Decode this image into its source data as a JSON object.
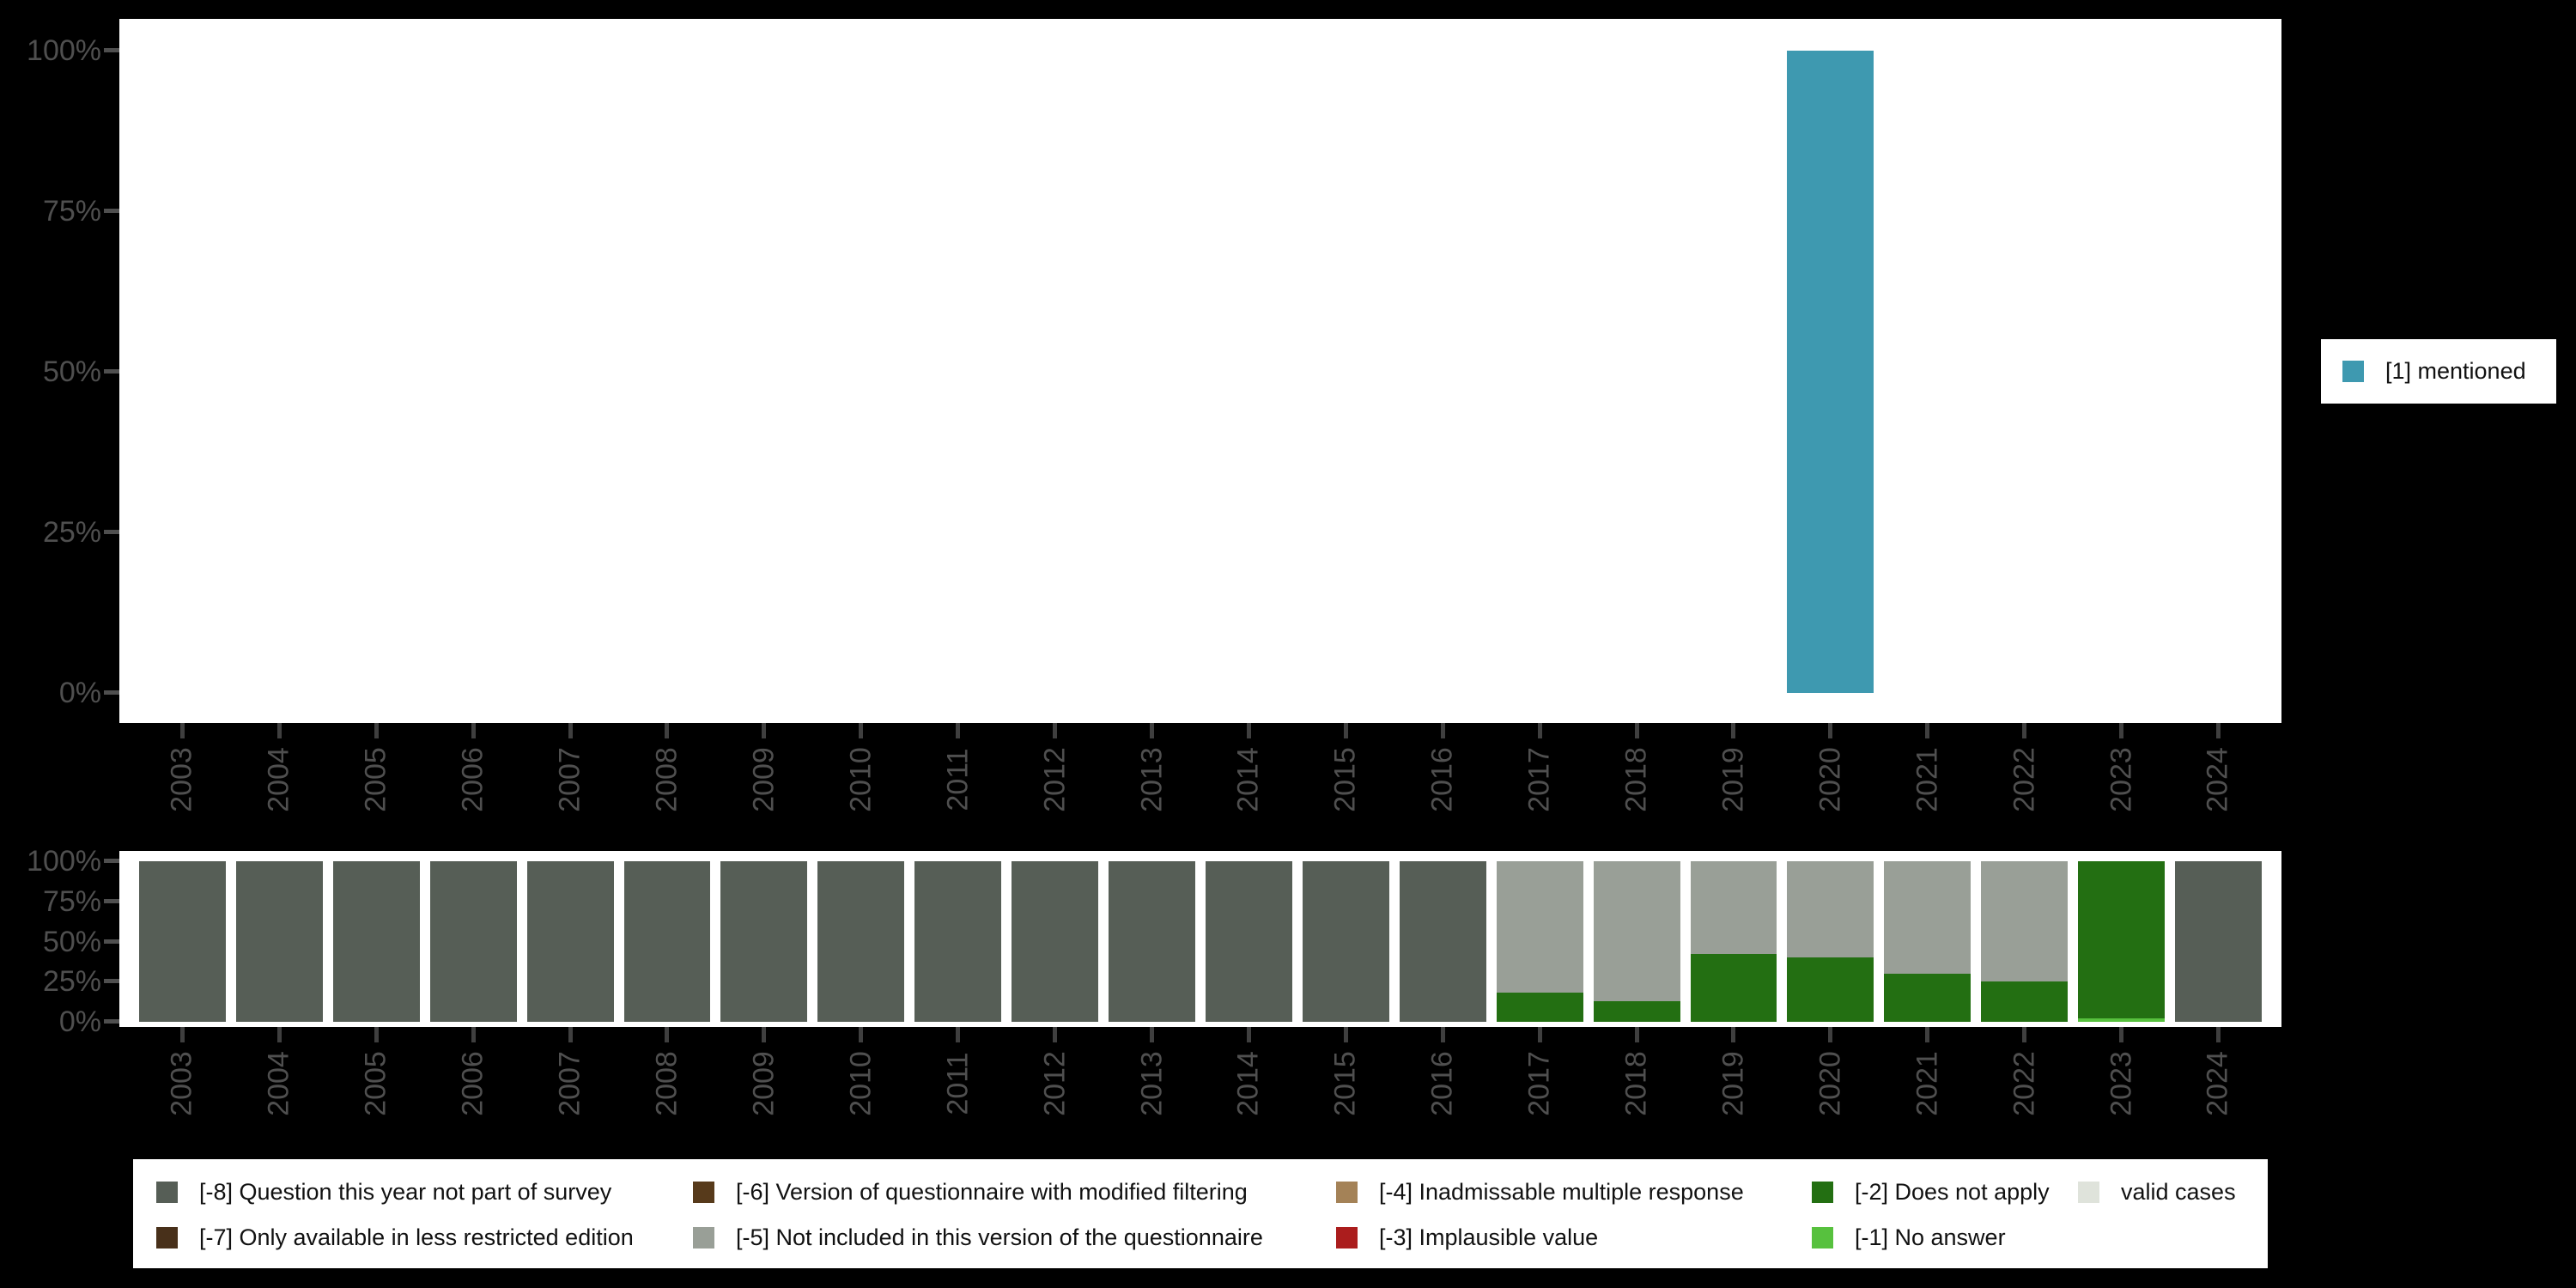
{
  "axes": {
    "y_tick_labels": [
      "0%",
      "25%",
      "50%",
      "75%",
      "100%"
    ],
    "x_tick_labels": [
      "2003",
      "2004",
      "2005",
      "2006",
      "2007",
      "2008",
      "2009",
      "2010",
      "2011",
      "2012",
      "2013",
      "2014",
      "2015",
      "2016",
      "2017",
      "2018",
      "2019",
      "2020",
      "2021",
      "2022",
      "2023",
      "2024"
    ]
  },
  "right_legend": {
    "items": [
      {
        "label": "[1] mentioned",
        "color": "#3e99b0"
      }
    ]
  },
  "bottom_legend": {
    "column_codes": [
      [
        "-8",
        "-7"
      ],
      [
        "-6",
        "-5"
      ],
      [
        "-4",
        "-3"
      ],
      [
        "-2",
        "-1"
      ],
      [
        "valid"
      ]
    ]
  },
  "chart_data": [
    {
      "type": "bar",
      "title": "",
      "categories": [
        "2003",
        "2004",
        "2005",
        "2006",
        "2007",
        "2008",
        "2009",
        "2010",
        "2011",
        "2012",
        "2013",
        "2014",
        "2015",
        "2016",
        "2017",
        "2018",
        "2019",
        "2020",
        "2021",
        "2022",
        "2023",
        "2024"
      ],
      "series": [
        {
          "code": "1",
          "name": "[1] mentioned",
          "color": "#3e99b0",
          "values": [
            0,
            0,
            0,
            0,
            0,
            0,
            0,
            0,
            0,
            0,
            0,
            0,
            0,
            0,
            0,
            0,
            0,
            100,
            0,
            0,
            0,
            0
          ]
        }
      ],
      "xlabel": "",
      "ylabel": "",
      "ylim": [
        0,
        100
      ],
      "yticks": [
        "0%",
        "25%",
        "50%",
        "75%",
        "100%"
      ],
      "grid": false,
      "legend_position": "right"
    },
    {
      "type": "stacked-bar",
      "title": "",
      "categories": [
        "2003",
        "2004",
        "2005",
        "2006",
        "2007",
        "2008",
        "2009",
        "2010",
        "2011",
        "2012",
        "2013",
        "2014",
        "2015",
        "2016",
        "2017",
        "2018",
        "2019",
        "2020",
        "2021",
        "2022",
        "2023",
        "2024"
      ],
      "series": [
        {
          "code": "-8",
          "name": "[-8] Question this year not part of survey",
          "color": "#565e56",
          "values": [
            100,
            100,
            100,
            100,
            100,
            100,
            100,
            100,
            100,
            100,
            100,
            100,
            100,
            100,
            0,
            0,
            0,
            0,
            0,
            0,
            0,
            100
          ]
        },
        {
          "code": "-7",
          "name": "[-7] Only available in less restricted edition",
          "color": "#48301a",
          "values": [
            0,
            0,
            0,
            0,
            0,
            0,
            0,
            0,
            0,
            0,
            0,
            0,
            0,
            0,
            0,
            0,
            0,
            0,
            0,
            0,
            0,
            0
          ]
        },
        {
          "code": "-6",
          "name": "[-6] Version of questionnaire with modified filtering",
          "color": "#573a1b",
          "values": [
            0,
            0,
            0,
            0,
            0,
            0,
            0,
            0,
            0,
            0,
            0,
            0,
            0,
            0,
            0,
            0,
            0,
            0,
            0,
            0,
            0,
            0
          ]
        },
        {
          "code": "-5",
          "name": "[-5] Not included in this version of the questionnaire",
          "color": "#999f97",
          "values": [
            0,
            0,
            0,
            0,
            0,
            0,
            0,
            0,
            0,
            0,
            0,
            0,
            0,
            0,
            82,
            87,
            58,
            60,
            70,
            75,
            0,
            0
          ]
        },
        {
          "code": "-4",
          "name": "[-4] Inadmissable multiple response",
          "color": "#a48257",
          "values": [
            0,
            0,
            0,
            0,
            0,
            0,
            0,
            0,
            0,
            0,
            0,
            0,
            0,
            0,
            0,
            0,
            0,
            0,
            0,
            0,
            0,
            0
          ]
        },
        {
          "code": "-3",
          "name": "[-3] Implausible value",
          "color": "#ab1d1d",
          "values": [
            0,
            0,
            0,
            0,
            0,
            0,
            0,
            0,
            0,
            0,
            0,
            0,
            0,
            0,
            0,
            0,
            0,
            0,
            0,
            0,
            0,
            0
          ]
        },
        {
          "code": "-2",
          "name": "[-2] Does not apply",
          "color": "#236f12",
          "values": [
            0,
            0,
            0,
            0,
            0,
            0,
            0,
            0,
            0,
            0,
            0,
            0,
            0,
            0,
            18,
            13,
            42,
            40,
            30,
            25,
            98,
            0
          ]
        },
        {
          "code": "-1",
          "name": "[-1] No answer",
          "color": "#57c13e",
          "values": [
            0,
            0,
            0,
            0,
            0,
            0,
            0,
            0,
            0,
            0,
            0,
            0,
            0,
            0,
            0,
            0,
            0,
            0,
            0,
            0,
            2,
            0
          ]
        },
        {
          "code": "valid",
          "name": "valid cases",
          "color": "#dfe3db",
          "values": [
            0,
            0,
            0,
            0,
            0,
            0,
            0,
            0,
            0,
            0,
            0,
            0,
            0,
            0,
            0,
            0,
            0,
            0,
            0,
            0,
            0,
            0
          ]
        }
      ],
      "stack_order": [
        "valid",
        "-1",
        "-2",
        "-3",
        "-4",
        "-5",
        "-6",
        "-7",
        "-8"
      ],
      "xlabel": "",
      "ylabel": "",
      "ylim": [
        0,
        100
      ],
      "yticks": [
        "0%",
        "25%",
        "50%",
        "75%",
        "100%"
      ],
      "grid": false,
      "legend_position": "bottom"
    }
  ]
}
